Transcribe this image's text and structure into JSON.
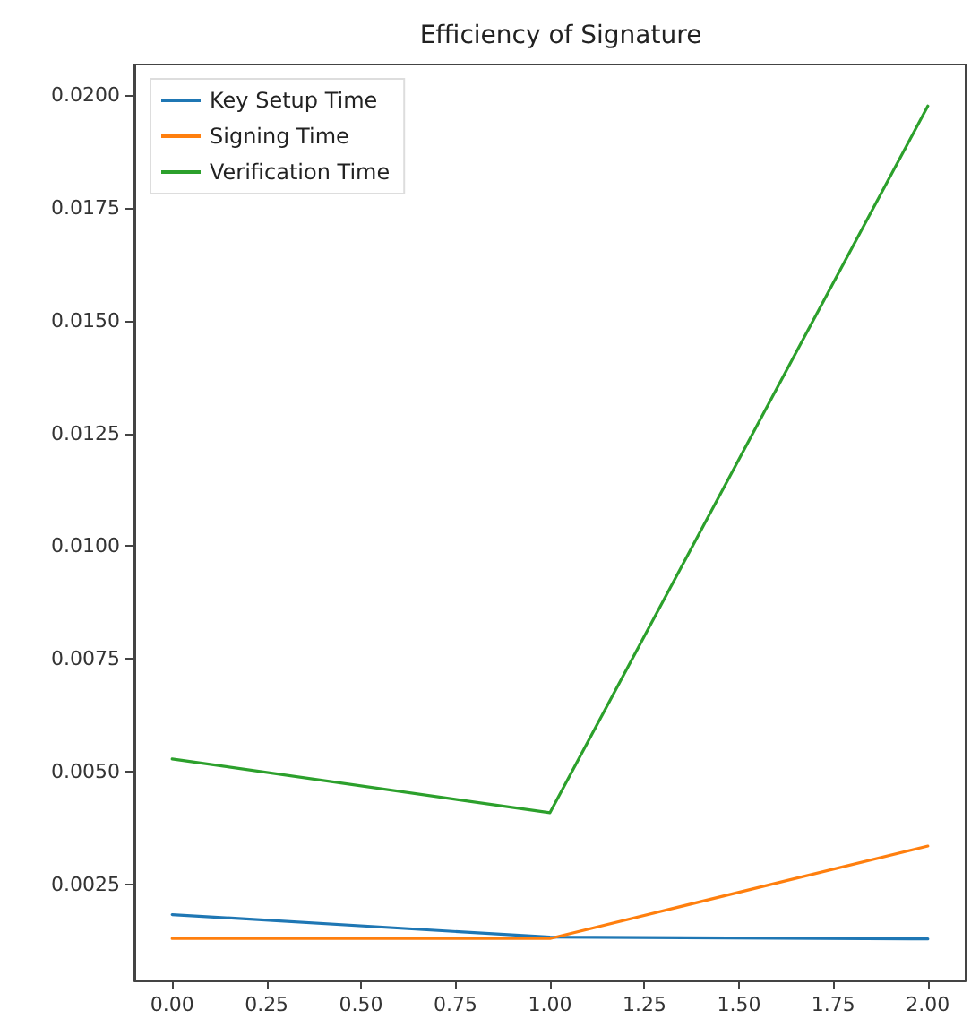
{
  "chart_data": {
    "type": "line",
    "title": "Efficiency of Signature",
    "x": [
      0,
      1,
      2
    ],
    "series": [
      {
        "name": "Key Setup Time",
        "color": "#1f77b4",
        "values": [
          0.00183,
          0.00133,
          0.00129
        ]
      },
      {
        "name": "Signing Time",
        "color": "#ff7f0e",
        "values": [
          0.0013,
          0.0013,
          0.00335
        ]
      },
      {
        "name": "Verification Time",
        "color": "#2ca02c",
        "values": [
          0.00528,
          0.00409,
          0.01976
        ]
      }
    ],
    "xlim": [
      -0.1,
      2.1
    ],
    "xticks": [
      {
        "value": 0,
        "label": "0.00"
      },
      {
        "value": 0.25,
        "label": "0.25"
      },
      {
        "value": 0.5,
        "label": "0.50"
      },
      {
        "value": 0.75,
        "label": "0.75"
      },
      {
        "value": 1,
        "label": "1.00"
      },
      {
        "value": 1.25,
        "label": "1.25"
      },
      {
        "value": 1.5,
        "label": "1.50"
      },
      {
        "value": 1.75,
        "label": "1.75"
      },
      {
        "value": 2,
        "label": "2.00"
      }
    ],
    "ylim": [
      0.00037,
      0.02068
    ],
    "yticks": [
      {
        "value": 0.0025,
        "label": "0.0025"
      },
      {
        "value": 0.005,
        "label": "0.0050"
      },
      {
        "value": 0.0075,
        "label": "0.0075"
      },
      {
        "value": 0.01,
        "label": "0.0100"
      },
      {
        "value": 0.0125,
        "label": "0.0125"
      },
      {
        "value": 0.015,
        "label": "0.0150"
      },
      {
        "value": 0.0175,
        "label": "0.0175"
      },
      {
        "value": 0.02,
        "label": "0.0200"
      }
    ],
    "grid": false,
    "legend": "top left",
    "marker": "none",
    "line_style": "solid"
  }
}
